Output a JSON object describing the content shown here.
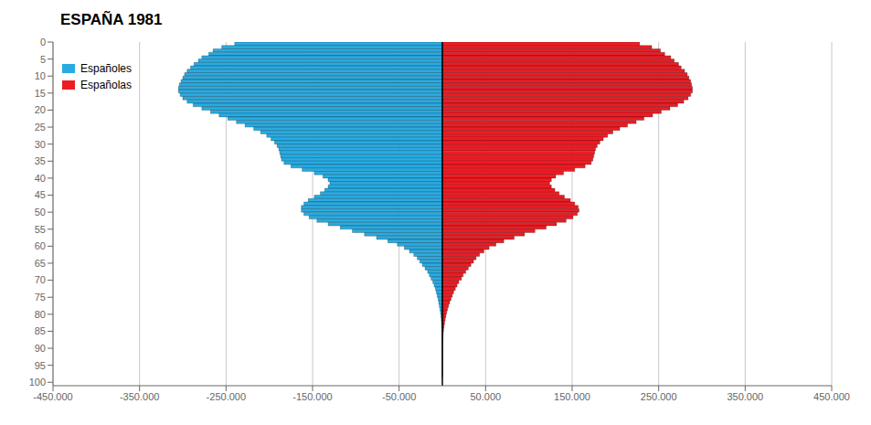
{
  "chart_data": {
    "type": "bar",
    "orientation": "horizontal",
    "title": "ESPAÑA 1981",
    "categories": [
      0,
      1,
      2,
      3,
      4,
      5,
      6,
      7,
      8,
      9,
      10,
      11,
      12,
      13,
      14,
      15,
      16,
      17,
      18,
      19,
      20,
      21,
      22,
      23,
      24,
      25,
      26,
      27,
      28,
      29,
      30,
      31,
      32,
      33,
      34,
      35,
      36,
      37,
      38,
      39,
      40,
      41,
      42,
      43,
      44,
      45,
      46,
      47,
      48,
      49,
      50,
      51,
      52,
      53,
      54,
      55,
      56,
      57,
      58,
      59,
      60,
      61,
      62,
      63,
      64,
      65,
      66,
      67,
      68,
      69,
      70,
      71,
      72,
      73,
      74,
      75,
      76,
      77,
      78,
      79,
      80,
      81,
      82,
      83,
      84,
      85,
      86,
      87,
      88,
      89,
      90,
      91,
      92,
      93,
      94,
      95,
      96,
      97,
      98,
      99
    ],
    "series": [
      {
        "name": "Españoles",
        "color": "#29ABE2",
        "values": [
          -220000,
          -240000,
          -255000,
          -265000,
          -270000,
          -278000,
          -282000,
          -287000,
          -291000,
          -295000,
          -298000,
          -300000,
          -302000,
          -304000,
          -305000,
          -305000,
          -303000,
          -300000,
          -295000,
          -288000,
          -278000,
          -268000,
          -258000,
          -248000,
          -238000,
          -228000,
          -218000,
          -210000,
          -203000,
          -198000,
          -194000,
          -191000,
          -189000,
          -188000,
          -187000,
          -186000,
          -183000,
          -175000,
          -162000,
          -148000,
          -138000,
          -132000,
          -130000,
          -132000,
          -136000,
          -141000,
          -148000,
          -155000,
          -160000,
          -163000,
          -163000,
          -160000,
          -154000,
          -145000,
          -132000,
          -118000,
          -104000,
          -90000,
          -76000,
          -63000,
          -52000,
          -44000,
          -38000,
          -33000,
          -29000,
          -26000,
          -23000,
          -20000,
          -17000,
          -15000,
          -13000,
          -11000,
          -9500,
          -8000,
          -7000,
          -6000,
          -5000,
          -4200,
          -3500,
          -2800,
          -2200,
          -1700,
          -1300,
          -1000,
          -750,
          -550,
          -390,
          -270,
          -185,
          -125,
          -82,
          -52,
          -33,
          -20,
          -12,
          -7,
          -4,
          -2,
          -1,
          0
        ]
      },
      {
        "name": "Españolas",
        "color": "#ED1C24",
        "values": [
          208000,
          228000,
          242000,
          252000,
          257000,
          264000,
          268000,
          273000,
          276000,
          280000,
          283000,
          285000,
          287000,
          288000,
          289000,
          289000,
          287000,
          284000,
          279000,
          272000,
          263000,
          253000,
          243000,
          233000,
          224000,
          214000,
          205000,
          197000,
          191000,
          186000,
          182000,
          179000,
          177000,
          176000,
          175000,
          174000,
          172000,
          165000,
          153000,
          140000,
          131000,
          126000,
          124000,
          126000,
          130000,
          135000,
          141000,
          148000,
          153000,
          157000,
          158000,
          156000,
          151000,
          143000,
          132000,
          120000,
          107000,
          95000,
          83000,
          71000,
          62000,
          54000,
          48000,
          43000,
          39000,
          36000,
          33000,
          30000,
          27000,
          24000,
          22000,
          19000,
          17000,
          15000,
          13000,
          11500,
          10000,
          8500,
          7200,
          6000,
          5000,
          4100,
          3300,
          2600,
          2000,
          1500,
          1100,
          800,
          570,
          400,
          275,
          185,
          122,
          80,
          51,
          32,
          20,
          12,
          7,
          4
        ]
      }
    ],
    "xlim": [
      -450000,
      450000
    ],
    "xticks": [
      {
        "value": -450000,
        "label": "-450.000"
      },
      {
        "value": -350000,
        "label": "-350.000"
      },
      {
        "value": -250000,
        "label": "-250.000"
      },
      {
        "value": -150000,
        "label": "-150.000"
      },
      {
        "value": -50000,
        "label": "-50.000"
      },
      {
        "value": 50000,
        "label": "50.000"
      },
      {
        "value": 150000,
        "label": "150.000"
      },
      {
        "value": 250000,
        "label": "250.000"
      },
      {
        "value": 350000,
        "label": "350.000"
      },
      {
        "value": 450000,
        "label": "450.000"
      }
    ],
    "ylim": [
      0,
      101
    ],
    "yticks": [
      0,
      5,
      10,
      15,
      20,
      25,
      30,
      35,
      40,
      45,
      50,
      55,
      60,
      65,
      70,
      75,
      80,
      85,
      90,
      95,
      100
    ],
    "grid": true,
    "legend": "upper left"
  }
}
